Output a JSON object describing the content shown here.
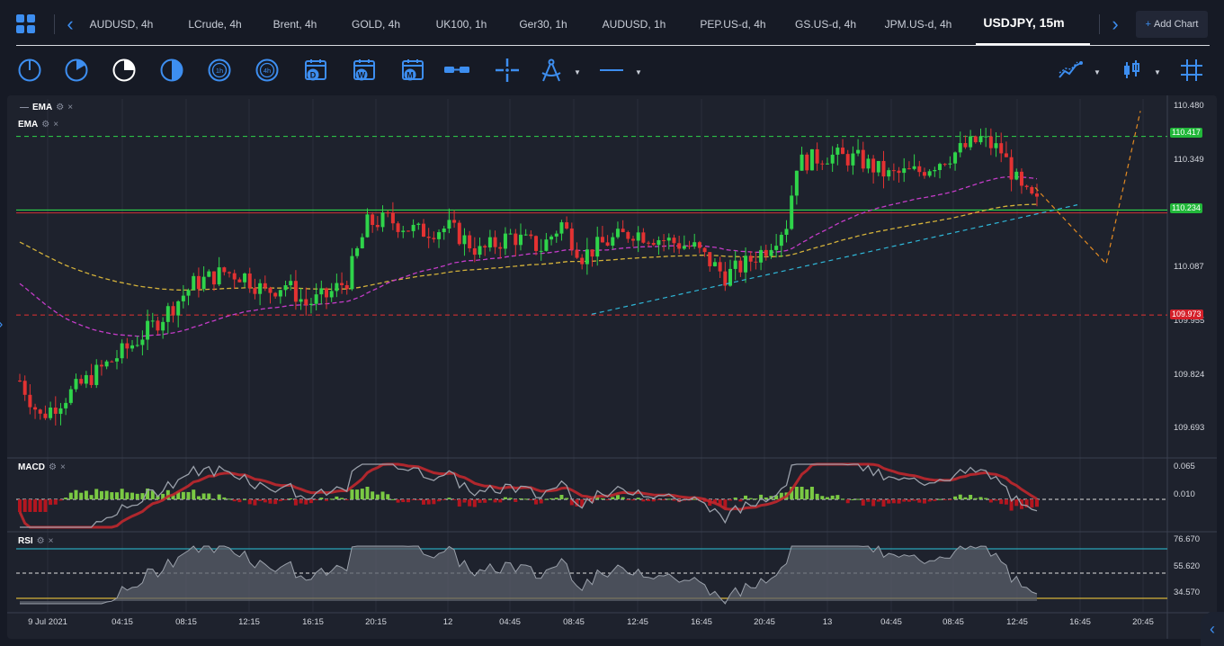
{
  "tabs": [
    {
      "label": "AUDUSD, 4h",
      "active": false
    },
    {
      "label": "LCrude, 4h",
      "active": false
    },
    {
      "label": "Brent, 4h",
      "active": false
    },
    {
      "label": "GOLD, 4h",
      "active": false
    },
    {
      "label": "UK100, 1h",
      "active": false
    },
    {
      "label": "Ger30, 1h",
      "active": false
    },
    {
      "label": "AUDUSD, 1h",
      "active": false
    },
    {
      "label": "PEP.US-d, 4h",
      "active": false
    },
    {
      "label": "GS.US-d, 4h",
      "active": false
    },
    {
      "label": "JPM.US-d, 4h",
      "active": false
    },
    {
      "label": "USDJPY, 15m",
      "active": true
    }
  ],
  "add_chart": {
    "plus": "+",
    "label": "Add Chart"
  },
  "nav": {
    "prev": "‹",
    "next": "›"
  },
  "toolbar": {
    "timeframes": [
      {
        "icon": "timeframe-1m-icon",
        "label": ""
      },
      {
        "icon": "timeframe-5m-icon",
        "label": ""
      },
      {
        "icon": "timeframe-15m-icon",
        "label": "",
        "active": true
      },
      {
        "icon": "timeframe-30m-icon",
        "label": ""
      },
      {
        "icon": "timeframe-1h-icon",
        "label": "1h"
      },
      {
        "icon": "timeframe-4h-icon",
        "label": "4h"
      },
      {
        "icon": "calendar-day-icon",
        "label": "D"
      },
      {
        "icon": "calendar-week-icon",
        "label": "W"
      },
      {
        "icon": "calendar-month-icon",
        "label": "M"
      }
    ],
    "tools": [
      "split-icon",
      "crosshair-icon",
      "drawing-compass-icon",
      "line-tool-icon"
    ],
    "right": [
      "indicators-icon",
      "chart-type-candles-icon",
      "grid-toggle-icon"
    ]
  },
  "indicators": {
    "main": [
      {
        "name": "EMA",
        "dash": "—"
      },
      {
        "name": "EMA",
        "dash": ""
      }
    ],
    "macd": {
      "name": "MACD"
    },
    "rsi": {
      "name": "RSI"
    },
    "gear": "⚙",
    "close": "×"
  },
  "colors": {
    "background": "#1e222d",
    "up": "#2fd44a",
    "down": "#e33232",
    "accent": "#3d8ef0",
    "ema_fast": "#d4b23a",
    "ema_slow": "#c43cc8",
    "level_green": "#2fd44a",
    "level_red": "#e33232",
    "trend_cyan": "#2fb7d8",
    "projection": "#e28a22",
    "rsi_upper": "#2aa6b8",
    "rsi_lower": "#d4b23a"
  },
  "chart_data": {
    "symbol": "USDJPY",
    "timeframe": "15m",
    "type": "candlestick",
    "price_axis": {
      "labels": [
        "110.480",
        "110.349",
        "110.087",
        "109.955",
        "109.824",
        "109.693"
      ],
      "range": [
        109.62,
        110.51
      ]
    },
    "price_tags": [
      {
        "value": "110.417",
        "kind": "green-level"
      },
      {
        "value": "110.234",
        "kind": "current"
      },
      {
        "value": "109.973",
        "kind": "red-level"
      }
    ],
    "time_axis": [
      "9 Jul 2021",
      "04:15",
      "08:15",
      "12:15",
      "16:15",
      "20:15",
      "12",
      "04:45",
      "08:45",
      "12:45",
      "16:45",
      "20:45",
      "13",
      "04:45",
      "08:45",
      "12:45",
      "16:45",
      "20:45"
    ],
    "levels": [
      {
        "name": "resistance",
        "value": 110.417,
        "style": "dashed",
        "color": "green"
      },
      {
        "name": "current",
        "value": 110.234,
        "style": "solid",
        "color": "green"
      },
      {
        "name": "current-red",
        "value": 110.227,
        "style": "solid",
        "color": "red"
      },
      {
        "name": "support",
        "value": 109.973,
        "style": "dashed",
        "color": "red"
      }
    ],
    "trendline": {
      "from": [
        "08:45",
        109.975
      ],
      "to": [
        "16:45",
        110.247
      ],
      "color": "cyan"
    },
    "projection": [
      [
        "12:45",
        110.29
      ],
      [
        "16:45",
        110.2
      ],
      [
        "20:45",
        110.11
      ],
      [
        "20:45+",
        110.48
      ]
    ],
    "macd_axis": {
      "labels": [
        "0.065",
        "0.010"
      ]
    },
    "rsi_axis": {
      "labels": [
        "76.670",
        "55.620",
        "34.570"
      ]
    }
  }
}
